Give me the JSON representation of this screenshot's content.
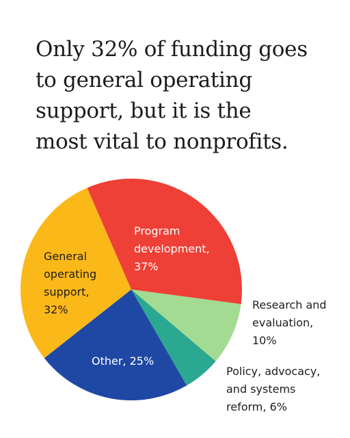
{
  "title_lines": [
    "Only 32% of funding goes",
    "to general operating",
    "support, but it is the",
    "most vital to nonprofits."
  ],
  "chart_data": {
    "type": "pie",
    "title": "Only 32% of funding goes to general operating support, but it is the most vital to nonprofits.",
    "unit": "%",
    "slices": [
      {
        "key": "program",
        "value": 37,
        "color": "#ee4036",
        "label_lines": [
          "Program",
          "development,",
          "37%"
        ]
      },
      {
        "key": "research",
        "value": 10,
        "color": "#a4db93",
        "label_lines": [
          "Research and",
          "evaluation,",
          "10%"
        ]
      },
      {
        "key": "policy",
        "value": 6,
        "color": "#2aa892",
        "label_lines": [
          "Policy, advocacy,",
          "and systems",
          "reform, 6%"
        ]
      },
      {
        "key": "other",
        "value": 25,
        "color": "#1f48a5",
        "label_lines": [
          "Other, 25%"
        ]
      },
      {
        "key": "general",
        "value": 32,
        "color": "#fbb819",
        "label_lines": [
          "General",
          "operating",
          "support,",
          "32%"
        ]
      }
    ]
  }
}
